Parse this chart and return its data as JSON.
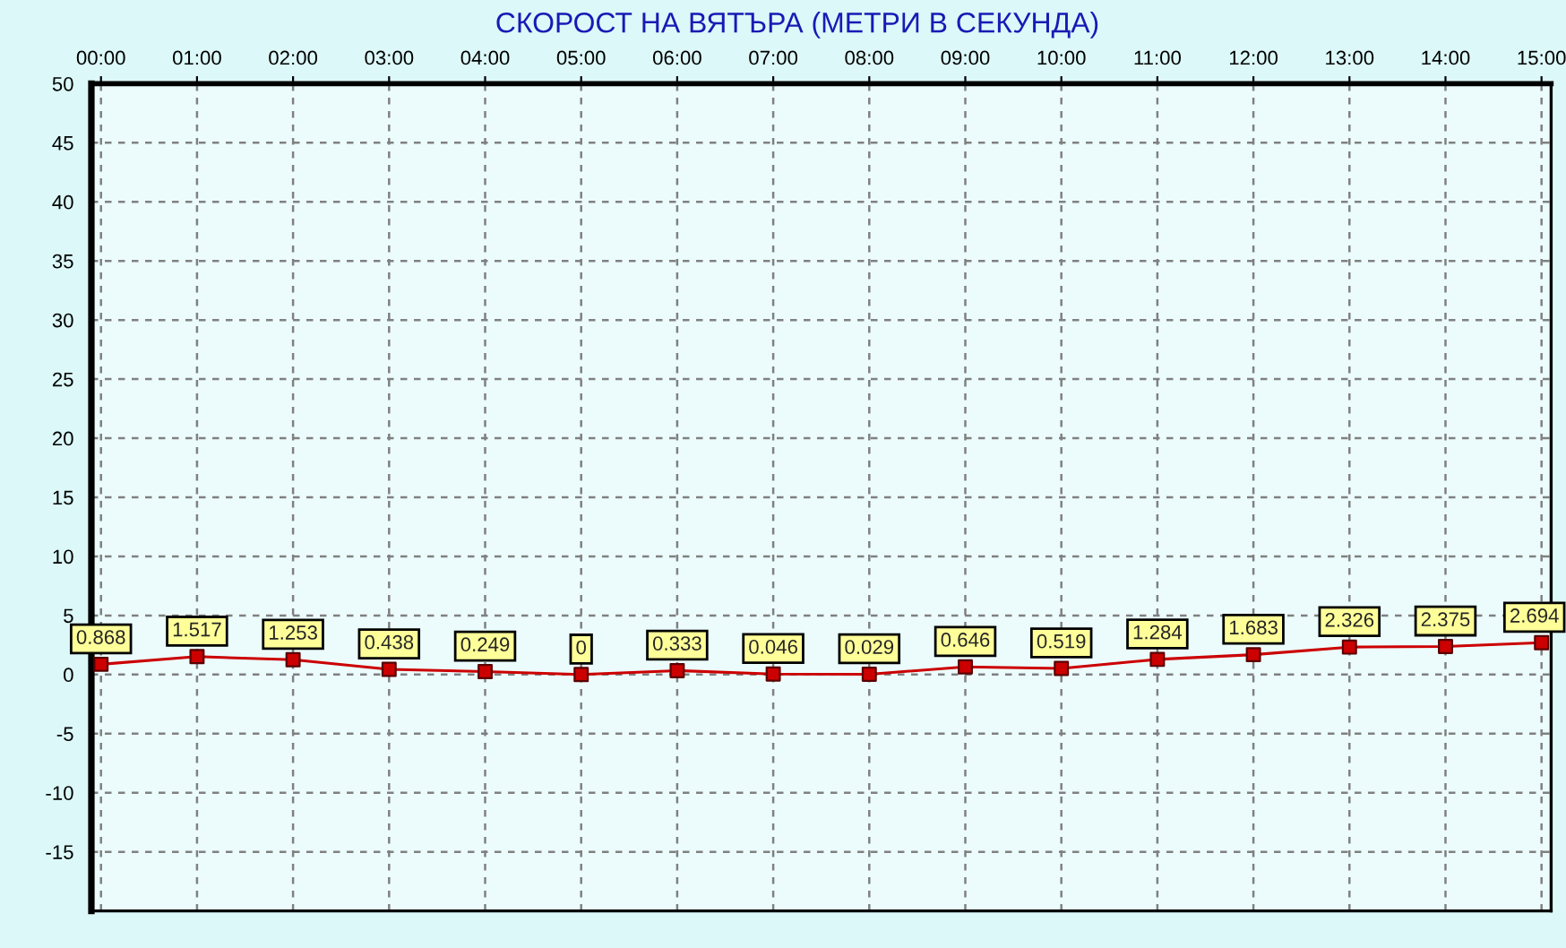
{
  "chart_data": {
    "type": "line",
    "title": "СКОРОСТ НА ВЯТЪРА (МЕТРИ В СЕКУНДА)",
    "x": [
      0,
      1,
      2,
      3,
      4,
      5,
      6,
      7,
      8,
      9,
      10,
      11,
      12,
      13,
      14,
      15
    ],
    "series": [
      {
        "color": "#cc0000",
        "values": [
          0.868,
          1.517,
          1.253,
          0.438,
          0.249,
          0,
          0.333,
          0.046,
          0.029,
          0.646,
          0.519,
          1.284,
          1.683,
          2.326,
          2.375,
          2.694
        ]
      }
    ],
    "xlim": [
      -0.1,
      15.1
    ],
    "xticks": [
      {
        "value": 0,
        "label": "00:00"
      },
      {
        "value": 1,
        "label": "01:00"
      },
      {
        "value": 2,
        "label": "02:00"
      },
      {
        "value": 3,
        "label": "03:00"
      },
      {
        "value": 4,
        "label": "04:00"
      },
      {
        "value": 5,
        "label": "05:00"
      },
      {
        "value": 6,
        "label": "06:00"
      },
      {
        "value": 7,
        "label": "07:00"
      },
      {
        "value": 8,
        "label": "08:00"
      },
      {
        "value": 9,
        "label": "09:00"
      },
      {
        "value": 10,
        "label": "10:00"
      },
      {
        "value": 11,
        "label": "11:00"
      },
      {
        "value": 12,
        "label": "12:00"
      },
      {
        "value": 13,
        "label": "13:00"
      },
      {
        "value": 14,
        "label": "14:00"
      },
      {
        "value": 15,
        "label": "15:00"
      }
    ],
    "ylim": [
      -20,
      50
    ],
    "yticks": [
      50,
      45,
      40,
      35,
      30,
      25,
      20,
      15,
      10,
      5,
      0,
      -5,
      -10,
      -15
    ],
    "grid": true,
    "marker": "square",
    "line_style": "solid",
    "data_labels": true
  }
}
